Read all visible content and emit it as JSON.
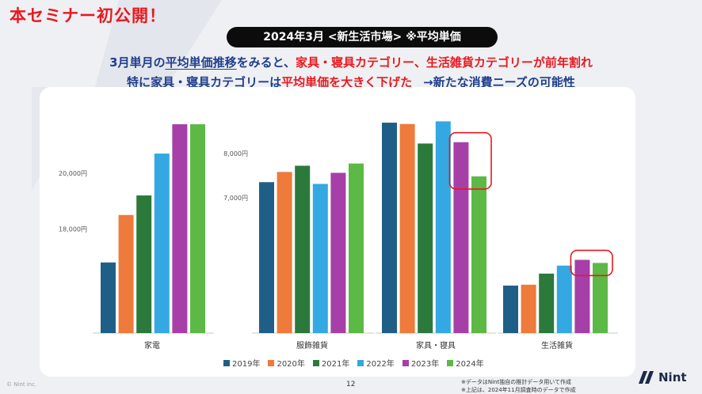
{
  "header": {
    "badge": "本セミナー初公開！",
    "pill": "2024年3月 <新生活市場> ※平均単価",
    "line1": {
      "p1": "3月単月の",
      "p2": "平均単価推移",
      "p3": "をみると、",
      "p4": "家具・寝具カテゴリー、生活雑貨カテゴリーが前年割れ"
    },
    "line2": {
      "p1": "特に",
      "p2": "家具・寝具カテゴリー",
      "p3": "は",
      "p4": "平均単価を大きく下げた",
      "p5": "→新たな消費ニーズの可能性"
    }
  },
  "chart_data": {
    "type": "bar",
    "legend_position": "bottom",
    "grid": false,
    "series": [
      {
        "name": "2019年",
        "color": "#1f5f87"
      },
      {
        "name": "2020年",
        "color": "#ee7a3b"
      },
      {
        "name": "2021年",
        "color": "#2b7a3b"
      },
      {
        "name": "2022年",
        "color": "#33a8e3"
      },
      {
        "name": "2023年",
        "color": "#a63fa8"
      },
      {
        "name": "2024年",
        "color": "#5cb946"
      }
    ],
    "groups": [
      {
        "category": "家電",
        "ticks": [
          {
            "label": "20,000円",
            "value": 20000
          },
          {
            "label": "18,000円",
            "value": 18000
          }
        ],
        "ylim": [
          14270,
          21950
        ],
        "values": [
          16800,
          18500,
          19200,
          20700,
          21750,
          21750
        ],
        "highlight": false
      },
      {
        "category": "服飾雑貨",
        "ticks": [
          {
            "label": "8,000円",
            "value": 8000
          },
          {
            "label": "7,000円",
            "value": 7000
          }
        ],
        "ylim": [
          3950,
          8780
        ],
        "values": [
          7350,
          7580,
          7720,
          7310,
          7560,
          7770
        ],
        "highlight": false
      },
      {
        "category": "家具・寝具",
        "ticks": [],
        "ylim": [
          3950,
          8780
        ],
        "values": [
          8690,
          8660,
          8220,
          8720,
          8250,
          7480
        ],
        "highlight": true
      },
      {
        "category": "生活雑貨",
        "ticks": [],
        "ylim": [
          3950,
          8780
        ],
        "values": [
          5020,
          5040,
          5290,
          5470,
          5600,
          5530
        ],
        "highlight": true
      }
    ]
  },
  "footer": {
    "page_number": "12",
    "copyright": "© Nint inc.",
    "note1": "※データはNint独自の推計データ用いて作成",
    "note2": "※上記は、2024年11月調査時のデータで作成",
    "logo_text": "Nint"
  }
}
